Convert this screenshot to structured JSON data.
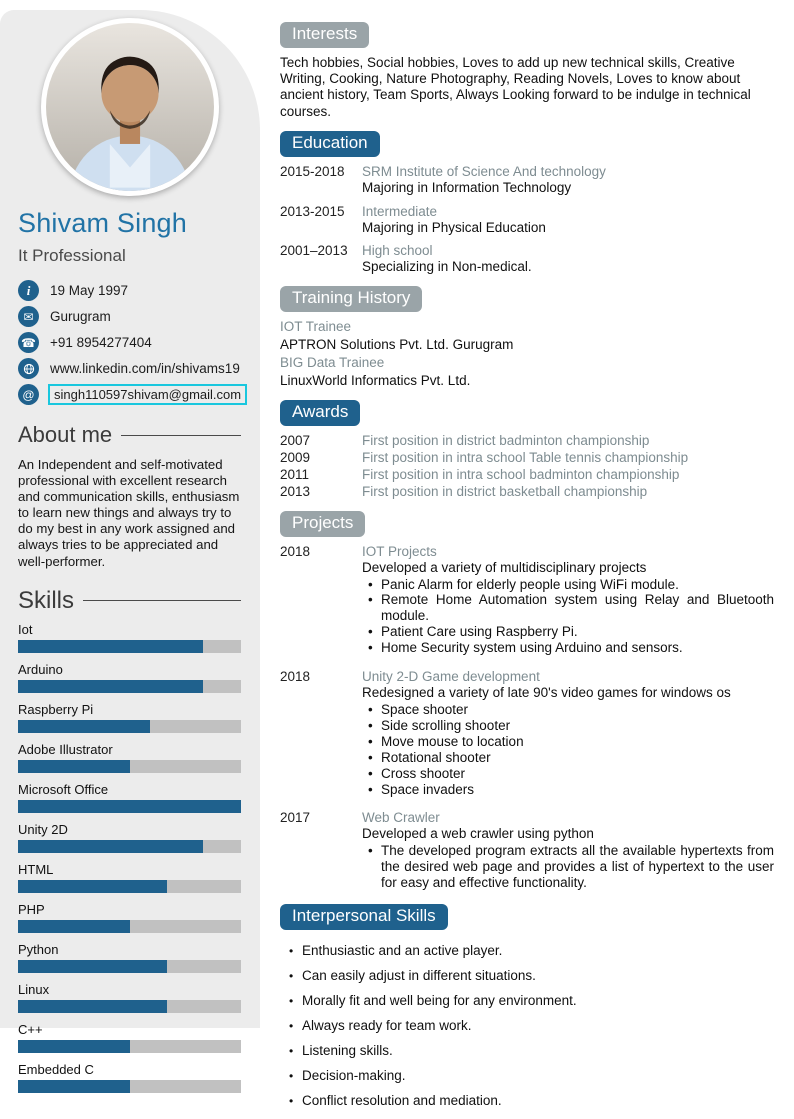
{
  "colors": {
    "accent_blue": "#1F618D",
    "name_blue": "#2173A6",
    "badge_gray": "#9AA4A8",
    "sidebar_bg": "#ECECEC",
    "bar_track_gray": "#C1C1C1",
    "muted_text": "#7E8C91",
    "email_border_cyan": "#19C7DE"
  },
  "sidebar": {
    "name": "Shivam Singh",
    "job_title": "It Professional",
    "contact": [
      {
        "icon": "info-icon",
        "glyph": "i",
        "text": "19 May 1997"
      },
      {
        "icon": "mail-icon",
        "glyph": "✉",
        "text": "Gurugram"
      },
      {
        "icon": "phone-icon",
        "glyph": "☎",
        "text": "+91 8954277404"
      },
      {
        "icon": "globe-icon",
        "glyph": "",
        "text": "www.linkedin.com/in/shivams19"
      },
      {
        "icon": "at-icon",
        "glyph": "@",
        "text": "singh110597shivam@gmail.com"
      }
    ],
    "about": {
      "heading": "About me",
      "text": "An Independent and self-motivated professional with excellent research and communication skills, enthusiasm to learn new things and always try to do my best in any work assigned and always tries to be appreciated and well-performer."
    },
    "skills_heading": "Skills",
    "skills": [
      {
        "label": "Iot",
        "percent": 83
      },
      {
        "label": "Arduino",
        "percent": 83
      },
      {
        "label": "Raspberry Pi",
        "percent": 59
      },
      {
        "label": "Adobe Illustrator",
        "percent": 50
      },
      {
        "label": "Microsoft Office",
        "percent": 100
      },
      {
        "label": "Unity 2D",
        "percent": 83
      },
      {
        "label": "HTML",
        "percent": 67
      },
      {
        "label": "PHP",
        "percent": 50
      },
      {
        "label": "Python",
        "percent": 67
      },
      {
        "label": "Linux",
        "percent": 67
      },
      {
        "label": "C++",
        "percent": 50
      },
      {
        "label": "Embedded C",
        "percent": 50
      }
    ]
  },
  "main": {
    "interests": {
      "heading": "Interests",
      "text": "Tech hobbies, Social hobbies, Loves to add up new technical skills, Creative Writing, Cooking, Nature Photography, Reading Novels, Loves to know about ancient history, Team Sports, Always Looking forward to be indulge in technical courses."
    },
    "education": {
      "heading": "Education",
      "entries": [
        {
          "years": "2015-2018",
          "line1": "SRM Institute of Science And technology",
          "line2": "Majoring in Information Technology"
        },
        {
          "years": "2013-2015",
          "line1": "Intermediate",
          "line2": "Majoring in Physical Education"
        },
        {
          "years": "2001–2013",
          "line1": "High school",
          "line2": "Specializing in Non-medical."
        }
      ]
    },
    "training": {
      "heading": "Training History",
      "lines": [
        {
          "text": "IOT Trainee"
        },
        {
          "text": "APTRON Solutions Pvt. Ltd. Gurugram"
        },
        {
          "text": "BIG Data Trainee"
        },
        {
          "text": "LinuxWorld Informatics Pvt. Ltd."
        }
      ]
    },
    "awards": {
      "heading": "Awards",
      "entries": [
        {
          "year": "2007",
          "text": "First position in district badminton championship"
        },
        {
          "year": "2009",
          "text": "First position in intra school Table tennis championship"
        },
        {
          "year": "2011",
          "text": "First position in intra school badminton championship"
        },
        {
          "year": "2013",
          "text": "First position in district basketball championship"
        }
      ]
    },
    "projects": {
      "heading": "Projects",
      "entries": [
        {
          "year": "2018",
          "title": "IOT Projects",
          "subtitle": "Developed a variety of multidisciplinary projects",
          "bullets": [
            "Panic Alarm for elderly people using WiFi module.",
            "Remote Home Automation system using Relay and Bluetooth module.",
            "Patient Care using Raspberry Pi.",
            "Home Security system using Arduino and sensors."
          ]
        },
        {
          "year": "2018",
          "title": "Unity 2-D Game development",
          "subtitle": "Redesigned a variety of late 90's video games for windows os",
          "bullets": [
            "Space shooter",
            "Side scrolling shooter",
            "Move mouse to location",
            "Rotational shooter",
            "Cross shooter",
            "Space invaders"
          ]
        },
        {
          "year": "2017",
          "title": "Web Crawler",
          "subtitle": "Developed a web crawler using python",
          "bullets": [
            "The developed program extracts all the available hypertexts from the desired web page and provides a list of hypertext to the user for easy and effective functionality."
          ]
        }
      ]
    },
    "interpersonal": {
      "heading": "Interpersonal Skills",
      "bullets": [
        "Enthusiastic and an active player.",
        "Can easily adjust in different situations.",
        "Morally fit and well being for any environment.",
        "Always ready for team work.",
        "Listening skills.",
        "Decision-making.",
        "Conflict resolution and mediation."
      ]
    }
  }
}
